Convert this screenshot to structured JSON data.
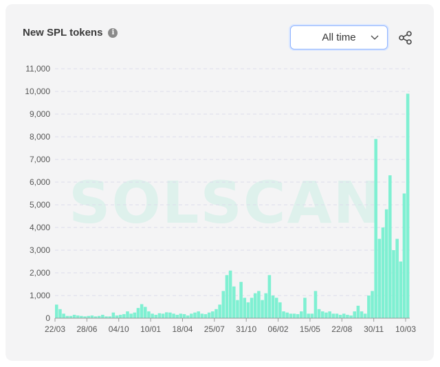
{
  "card": {
    "title": "New SPL tokens",
    "info_glyph": "i",
    "range_select": {
      "value": "All time"
    },
    "watermark": "SOLSCAN"
  },
  "icons": {
    "info": "info-icon",
    "dropdown": "chevron-down-icon",
    "share": "share-icon"
  },
  "colors": {
    "bar": "#7ff0d2",
    "grid": "#dcdcec",
    "axis_text": "#555555"
  },
  "chart_data": {
    "type": "bar",
    "title": "New SPL tokens",
    "xlabel": "",
    "ylabel": "",
    "ylim": [
      0,
      11000
    ],
    "yticks": [
      0,
      1000,
      2000,
      3000,
      4000,
      5000,
      6000,
      7000,
      8000,
      9000,
      10000,
      11000
    ],
    "ytick_labels": [
      "0",
      "1,000",
      "2,000",
      "3,000",
      "4,000",
      "5,000",
      "6,000",
      "7,000",
      "8,000",
      "9,000",
      "10,000",
      "11,000"
    ],
    "xtick_labels": [
      "22/03",
      "28/06",
      "04/10",
      "10/01",
      "18/04",
      "25/07",
      "31/10",
      "06/02",
      "15/05",
      "22/08",
      "30/11",
      "10/03"
    ],
    "grid": true,
    "legend": "none",
    "values": [
      600,
      400,
      200,
      100,
      100,
      150,
      120,
      100,
      80,
      100,
      120,
      80,
      100,
      150,
      80,
      80,
      250,
      120,
      150,
      180,
      300,
      200,
      250,
      450,
      620,
      500,
      300,
      200,
      150,
      220,
      200,
      260,
      250,
      200,
      150,
      200,
      180,
      120,
      200,
      250,
      300,
      200,
      180,
      250,
      300,
      400,
      600,
      1200,
      1900,
      2100,
      1400,
      800,
      1600,
      900,
      700,
      900,
      1100,
      1200,
      800,
      1100,
      1900,
      1000,
      900,
      700,
      300,
      250,
      200,
      200,
      180,
      300,
      900,
      200,
      200,
      1200,
      400,
      300,
      250,
      300,
      200,
      200,
      150,
      200,
      150,
      120,
      300,
      550,
      300,
      200,
      1000,
      1200,
      7900,
      3500,
      4000,
      4800,
      6300,
      3000,
      3500,
      2500,
      5500,
      9900
    ]
  }
}
